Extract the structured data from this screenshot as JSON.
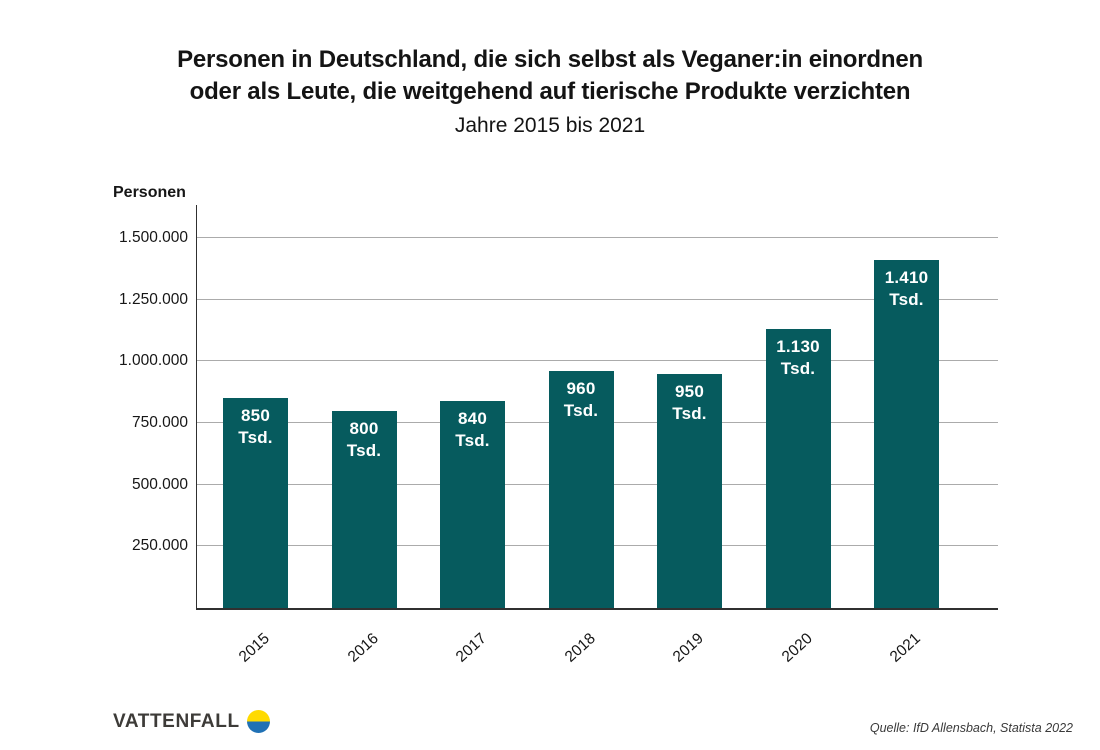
{
  "header": {
    "title_line1": "Personen in Deutschland, die sich selbst als Veganer:in einordnen",
    "title_line2": "oder als Leute, die weitgehend auf tierische Produkte verzichten",
    "subtitle": "Jahre 2015 bis 2021"
  },
  "chart_data": {
    "type": "bar",
    "title": "Personen in Deutschland, die sich selbst als Veganer:in einordnen oder als Leute, die weitgehend auf tierische Produkte verzichten",
    "subtitle": "Jahre 2015 bis 2021",
    "ylabel": "Personen",
    "xlabel": "",
    "categories": [
      "2015",
      "2016",
      "2017",
      "2018",
      "2019",
      "2020",
      "2021"
    ],
    "values": [
      850000,
      800000,
      840000,
      960000,
      950000,
      1130000,
      1410000
    ],
    "bar_labels": [
      "850 Tsd.",
      "800 Tsd.",
      "840 Tsd.",
      "960 Tsd.",
      "950 Tsd.",
      "1.130 Tsd.",
      "1.410 Tsd."
    ],
    "yticks": [
      250000,
      500000,
      750000,
      1000000,
      1250000,
      1500000
    ],
    "ytick_labels": [
      "250.000",
      "500.000",
      "750.000",
      "1.000.000",
      "1.250.000",
      "1.500.000"
    ],
    "ylim": [
      0,
      1634000
    ],
    "grid": true,
    "legend": false,
    "bar_color": "#065B5E",
    "bar_label_color": "#FFFFFF",
    "gridline_color": "#ABABAB",
    "axis_color": "#303030"
  },
  "footer": {
    "brand": "VATTENFALL",
    "logo_top_color": "#FFDA00",
    "logo_bottom_color": "#2071B5",
    "source": "Quelle: IfD Allensbach, Statista 2022"
  }
}
